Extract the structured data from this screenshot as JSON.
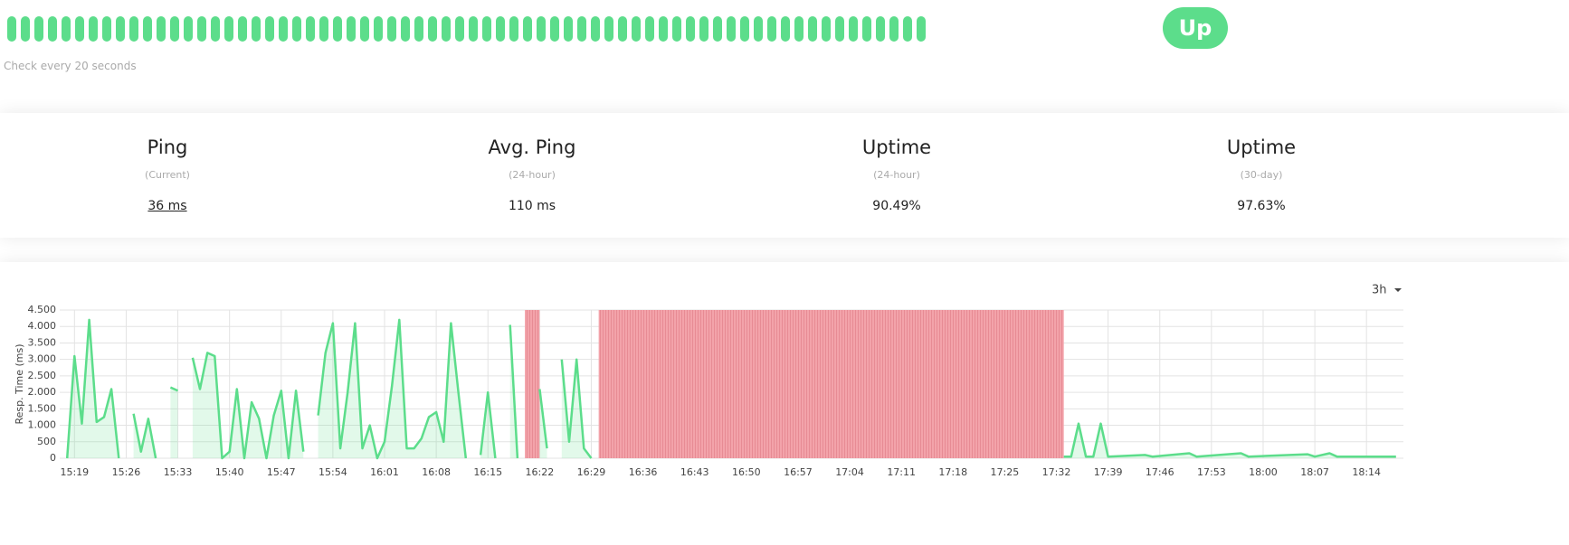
{
  "status": {
    "label": "Up"
  },
  "check_interval": "Check every 20 seconds",
  "heartbeat": {
    "count": 68,
    "color": "#5cdd8b"
  },
  "stats": [
    {
      "title": "Ping",
      "period": "(Current)",
      "value": "36 ms"
    },
    {
      "title": "Avg. Ping",
      "period": "(24-hour)",
      "value": "110 ms"
    },
    {
      "title": "Uptime",
      "period": "(24-hour)",
      "value": "90.49%"
    },
    {
      "title": "Uptime",
      "period": "(30-day)",
      "value": "97.63%"
    }
  ],
  "chart_data": {
    "type": "line",
    "range": "3h",
    "y_label": "Resp. Time (ms)",
    "x": [
      "15:18",
      "15:19",
      "15:20",
      "15:21",
      "15:22",
      "15:23",
      "15:24",
      "15:25",
      "15:26",
      "15:27",
      "15:28",
      "15:29",
      "15:30",
      "15:31",
      "15:32",
      "15:33",
      "15:34",
      "15:35",
      "15:36",
      "15:37",
      "15:38",
      "15:39",
      "15:40",
      "15:41",
      "15:42",
      "15:43",
      "15:44",
      "15:45",
      "15:46",
      "15:47",
      "15:48",
      "15:49",
      "15:50",
      "15:51",
      "15:52",
      "15:53",
      "15:54",
      "15:55",
      "15:56",
      "15:57",
      "15:58",
      "15:59",
      "16:00",
      "16:01",
      "16:02",
      "16:03",
      "16:04",
      "16:05",
      "16:06",
      "16:07",
      "16:08",
      "16:09",
      "16:10",
      "16:11",
      "16:12",
      "16:13",
      "16:14",
      "16:15",
      "16:16",
      "16:17",
      "16:18",
      "16:19",
      "16:20",
      "16:21",
      "16:22",
      "16:23",
      "16:24",
      "16:25",
      "16:26",
      "16:27",
      "16:28",
      "16:29",
      "16:30",
      "17:33",
      "17:34",
      "17:35",
      "17:36",
      "17:37",
      "17:38",
      "17:39",
      "17:44",
      "17:45",
      "17:50",
      "17:51",
      "17:57",
      "17:58",
      "18:06",
      "18:07",
      "18:09",
      "18:10",
      "18:18"
    ],
    "series": [
      {
        "color": "#5cdd8b",
        "values": [
          0,
          3100,
          1050,
          4200,
          1100,
          1250,
          2100,
          0,
          null,
          1350,
          200,
          1200,
          0,
          null,
          2150,
          2050,
          null,
          3050,
          2100,
          3200,
          3100,
          0,
          200,
          2100,
          0,
          1700,
          1200,
          0,
          1300,
          2050,
          0,
          2050,
          200,
          null,
          1300,
          3200,
          4100,
          300,
          2000,
          4100,
          300,
          1000,
          0,
          500,
          2200,
          4200,
          300,
          300,
          600,
          1250,
          1400,
          500,
          4100,
          2000,
          0,
          null,
          100,
          2000,
          0,
          null,
          4050,
          0,
          null,
          null,
          2100,
          300,
          null,
          3000,
          500,
          3000,
          300,
          0,
          null,
          50,
          50,
          1050,
          50,
          50,
          1050,
          50,
          100,
          50,
          150,
          50,
          150,
          50,
          120,
          50,
          150,
          50,
          50
        ]
      }
    ],
    "down_periods": [
      {
        "start": "16:20",
        "end": "16:22"
      },
      {
        "start": "16:30",
        "end": "17:33"
      }
    ],
    "down_color": "#f3a3aa",
    "xlim": [
      "15:17",
      "18:19"
    ],
    "xticks": [
      "15:19",
      "15:26",
      "15:33",
      "15:40",
      "15:47",
      "15:54",
      "16:01",
      "16:08",
      "16:15",
      "16:22",
      "16:29",
      "16:36",
      "16:43",
      "16:50",
      "16:57",
      "17:04",
      "17:11",
      "17:18",
      "17:25",
      "17:32",
      "17:39",
      "17:46",
      "17:53",
      "18:00",
      "18:07",
      "18:14"
    ],
    "ylim": [
      0,
      4500
    ],
    "yticks": [
      0,
      500,
      {
        "value": 1000,
        "label": "1.000"
      },
      {
        "value": 1500,
        "label": "1.500"
      },
      {
        "value": 2000,
        "label": "2.000"
      },
      {
        "value": 2500,
        "label": "2.500"
      },
      {
        "value": 3000,
        "label": "3.000"
      },
      {
        "value": 3500,
        "label": "3.500"
      },
      {
        "value": 4000,
        "label": "4.000"
      },
      {
        "value": 4500,
        "label": "4.500"
      }
    ],
    "grid": true
  }
}
